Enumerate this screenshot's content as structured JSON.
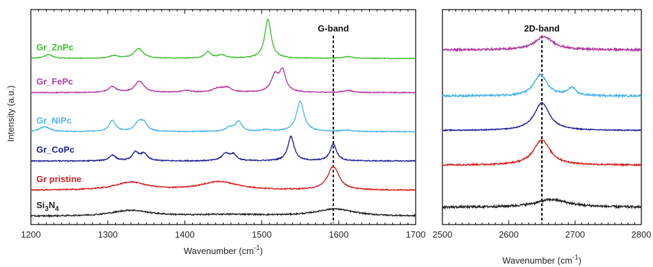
{
  "chart_data": {
    "type": "line",
    "ylabel": "Intensity (a.u.)",
    "panels": [
      {
        "xlabel": "Wavenumber (cm",
        "xlabel_sup": "-1",
        "xlabel_suffix": ")",
        "xlim": [
          1200,
          1700
        ],
        "xticks": [
          "1200",
          "1300",
          "1400",
          "1500",
          "1600",
          "1700"
        ],
        "band_label": "G-band",
        "band_position": 1593,
        "y_visible": [
          0,
          6.6
        ]
      },
      {
        "xlabel": "Wavenumber (cm",
        "xlabel_sup": "-1",
        "xlabel_suffix": ")",
        "xlim": [
          2500,
          2800
        ],
        "xticks": [
          "2500",
          "2600",
          "2700",
          "2800"
        ],
        "band_label": "2D-band",
        "band_position": 2650,
        "y_visible": [
          -0.5,
          5.1
        ]
      }
    ],
    "series": [
      {
        "name": "Gr_ZnPc",
        "color": "#3cbf2a",
        "g_offset": 5.1,
        "g_noise": 0.012,
        "g_peaks": [
          [
            1223,
            0.12,
            6
          ],
          [
            1308,
            0.08,
            7
          ],
          [
            1340,
            0.3,
            7
          ],
          [
            1430,
            0.2,
            5
          ],
          [
            1448,
            0.1,
            6
          ],
          [
            1508,
            1.2,
            5
          ],
          [
            1612,
            0.05,
            8
          ]
        ],
        "d_offset": null,
        "d_noise": 0,
        "d_peaks": []
      },
      {
        "name": "Gr_FePc",
        "color": "#b03aa5",
        "g_offset": 4.05,
        "g_noise": 0.014,
        "g_peaks": [
          [
            1306,
            0.18,
            6
          ],
          [
            1341,
            0.35,
            7
          ],
          [
            1402,
            0.06,
            8
          ],
          [
            1443,
            0.12,
            8
          ],
          [
            1455,
            0.14,
            7
          ],
          [
            1517,
            0.5,
            6
          ],
          [
            1527,
            0.62,
            5
          ],
          [
            1612,
            0.06,
            8
          ]
        ],
        "d_offset": 4.05,
        "d_noise": 0.025,
        "d_peaks": [
          [
            2653,
            0.34,
            17
          ]
        ]
      },
      {
        "name": "Gr_NiPc",
        "color": "#4cb6e2",
        "g_offset": 2.85,
        "g_noise": 0.014,
        "g_peaks": [
          [
            1218,
            0.15,
            8
          ],
          [
            1306,
            0.34,
            5
          ],
          [
            1340,
            0.28,
            6
          ],
          [
            1347,
            0.22,
            5
          ],
          [
            1458,
            0.12,
            6
          ],
          [
            1470,
            0.3,
            5
          ],
          [
            1505,
            0.05,
            8
          ],
          [
            1550,
            0.92,
            6
          ],
          [
            1610,
            0.04,
            8
          ]
        ],
        "d_offset": 2.85,
        "d_noise": 0.025,
        "d_peaks": [
          [
            2648,
            0.55,
            12
          ],
          [
            2695,
            0.2,
            7
          ]
        ]
      },
      {
        "name": "Gr_CoPc",
        "color": "#1c1f97",
        "g_offset": 1.95,
        "g_noise": 0.016,
        "g_peaks": [
          [
            1306,
            0.18,
            5
          ],
          [
            1336,
            0.26,
            5
          ],
          [
            1347,
            0.22,
            5
          ],
          [
            1453,
            0.22,
            6
          ],
          [
            1463,
            0.18,
            5
          ],
          [
            1538,
            0.75,
            5
          ],
          [
            1593,
            0.52,
            5
          ]
        ],
        "d_offset": 1.95,
        "d_noise": 0.012,
        "d_peaks": [
          [
            2650,
            0.72,
            14
          ]
        ]
      },
      {
        "name": "Gr pristine",
        "color": "#d61f1f",
        "g_offset": 1.05,
        "g_noise": 0.016,
        "g_peaks": [
          [
            1330,
            0.24,
            25
          ],
          [
            1445,
            0.26,
            30
          ],
          [
            1593,
            0.72,
            9
          ]
        ],
        "d_offset": 1.05,
        "d_noise": 0.02,
        "d_peaks": [
          [
            2650,
            0.66,
            15
          ]
        ]
      },
      {
        "name": "Si3N4",
        "color": "#222222",
        "g_offset": 0.25,
        "g_noise": 0.02,
        "g_peaks": [
          [
            1330,
            0.18,
            30
          ],
          [
            1460,
            0.05,
            60
          ],
          [
            1595,
            0.22,
            30
          ]
        ],
        "d_offset": -0.05,
        "d_noise": 0.028,
        "d_peaks": [
          [
            2665,
            0.2,
            30
          ]
        ]
      }
    ],
    "labels": [
      {
        "prefix": "Gr_ZnPc",
        "sub": "",
        "suffix": ""
      },
      {
        "prefix": "Gr_FePc",
        "sub": "",
        "suffix": ""
      },
      {
        "prefix": "Gr_NiPc",
        "sub": "",
        "suffix": ""
      },
      {
        "prefix": "Gr_CoPc",
        "sub": "",
        "suffix": ""
      },
      {
        "prefix": "Gr pristine",
        "sub": "",
        "suffix": ""
      },
      {
        "prefix": "Si",
        "sub": "3",
        "suffix": "N",
        "sub2": "4"
      }
    ]
  }
}
